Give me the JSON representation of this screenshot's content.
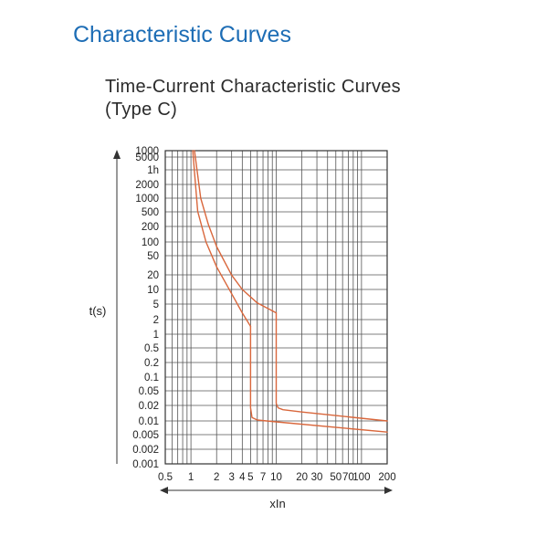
{
  "header": {
    "title": "Characteristic Curves",
    "subtitle_line1": "Time-Current Characteristic Curves",
    "subtitle_line2": "(Type C)"
  },
  "colors": {
    "title": "#1d6db5",
    "curve": "#d9673c",
    "grid": "#555555",
    "text": "#222222"
  },
  "chart_data": {
    "type": "line",
    "xlabel": "xIn",
    "ylabel": "t(s)",
    "x_scale": "log",
    "y_scale": "log",
    "grid": true,
    "x_tick_labels": [
      "0.5",
      "1",
      "2",
      "3",
      "4",
      "5",
      "7",
      "10",
      "20",
      "30",
      "50",
      "70",
      "100",
      "200"
    ],
    "y_tick_labels": [
      "1000",
      "5000",
      "1h",
      "2000",
      "1000",
      "500",
      "200",
      "100",
      "50",
      "20",
      "10",
      "5",
      "2",
      "1",
      "0.5",
      "0.2",
      "0.1",
      "0.05",
      "0.02",
      "0.01",
      "0.005",
      "0.002",
      "0.001"
    ],
    "series": [
      {
        "x": [
          1.05,
          1.2,
          1.5,
          2,
          3,
          4,
          5
        ],
        "y": [
          7200,
          500,
          100,
          30,
          8,
          3,
          1.5
        ]
      },
      {
        "x": [
          5,
          5,
          5.2,
          6,
          10,
          200
        ],
        "y": [
          1.5,
          0.02,
          0.012,
          0.0105,
          0.0095,
          0.0055
        ]
      },
      {
        "x": [
          1.1,
          1.3,
          1.6,
          2,
          3,
          4,
          6,
          10
        ],
        "y": [
          7200,
          1000,
          250,
          80,
          20,
          10,
          5,
          3
        ]
      },
      {
        "x": [
          10,
          10,
          10.5,
          12,
          20,
          200
        ],
        "y": [
          3,
          0.025,
          0.02,
          0.018,
          0.016,
          0.01
        ]
      }
    ]
  }
}
